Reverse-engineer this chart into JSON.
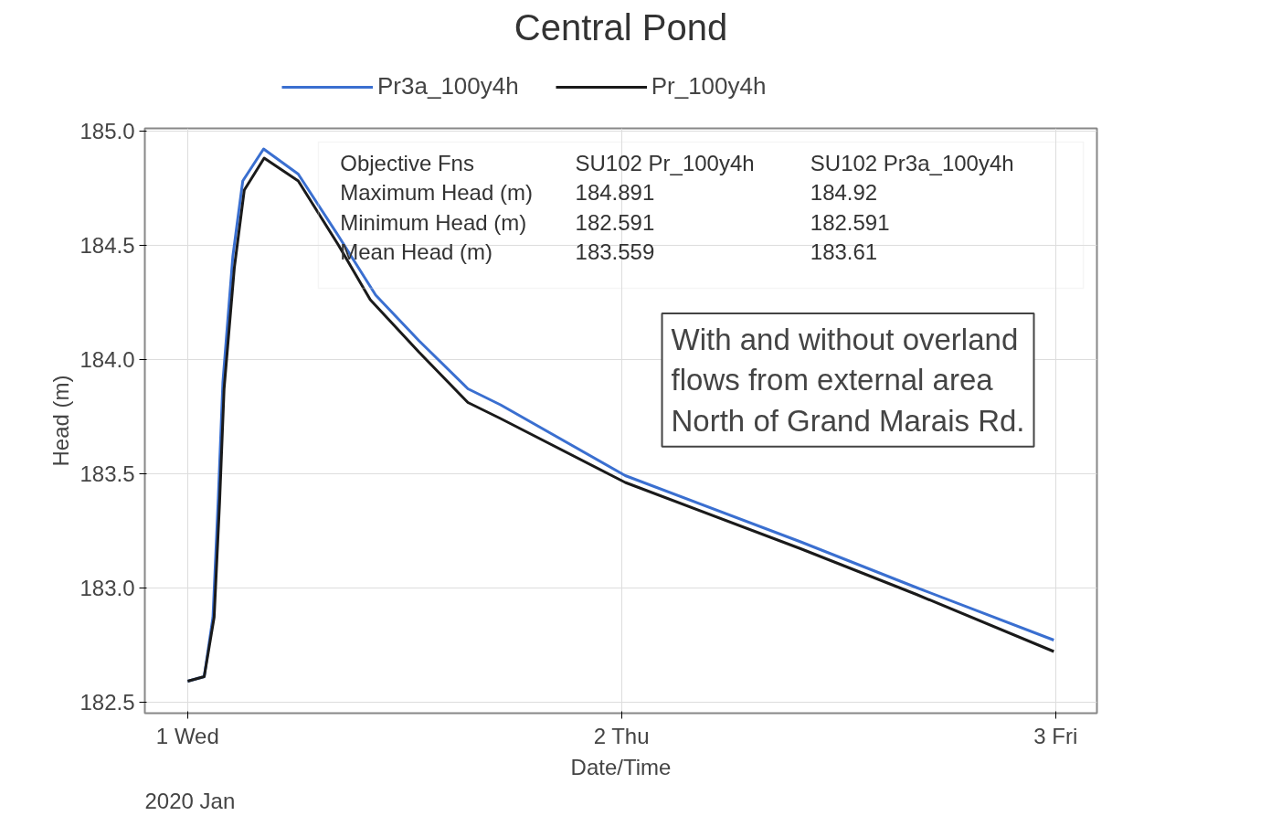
{
  "chart_data": {
    "type": "line",
    "title": "Central Pond",
    "xlabel": "Date/Time",
    "ylabel": "Head (m)",
    "xlim": [
      "2019-12-31T21:38",
      "2020-01-03T02:17"
    ],
    "ylim": [
      182.45,
      185.01
    ],
    "xticks": [
      {
        "value": "2020-01-01",
        "label": "1 Wed"
      },
      {
        "value": "2020-01-02",
        "label": "2 Thu"
      },
      {
        "value": "2020-01-03",
        "label": "3 Fri"
      }
    ],
    "yticks": [
      {
        "value": 182.5,
        "label": "182.5"
      },
      {
        "value": 183.0,
        "label": "183.0"
      },
      {
        "value": 183.5,
        "label": "183.5"
      },
      {
        "value": 184.0,
        "label": "184.0"
      },
      {
        "value": 184.5,
        "label": "184.5"
      },
      {
        "value": 185.0,
        "label": "185.0"
      }
    ],
    "grid": true,
    "legend": "top",
    "series": [
      {
        "name": "Pr3a_100y4h",
        "color": "#3a6fd0",
        "x": [
          "2020-01-01T00:00",
          "2020-01-01T00:55",
          "2020-01-01T01:24",
          "2020-01-01T01:42",
          "2020-01-01T01:57",
          "2020-01-01T02:30",
          "2020-01-01T03:03",
          "2020-01-01T04:12",
          "2020-01-01T06:07",
          "2020-01-01T08:20",
          "2020-01-01T10:24",
          "2020-01-01T12:48",
          "2020-01-01T15:30",
          "2020-01-01T17:18",
          "2020-01-02T00:12",
          "2020-01-02T09:54",
          "2020-01-02T16:18",
          "2020-01-02T23:54"
        ],
        "values": [
          182.59,
          182.61,
          182.87,
          183.4,
          183.9,
          184.45,
          184.78,
          184.92,
          184.81,
          184.54,
          184.28,
          184.08,
          183.87,
          183.8,
          183.49,
          183.2,
          183.0,
          182.77
        ]
      },
      {
        "name": "Pr_100y4h",
        "color": "#1a1a1a",
        "x": [
          "2020-01-01T00:00",
          "2020-01-01T00:55",
          "2020-01-01T01:28",
          "2020-01-01T01:46",
          "2020-01-01T02:01",
          "2020-01-01T02:35",
          "2020-01-01T03:08",
          "2020-01-01T04:14",
          "2020-01-01T06:07",
          "2020-01-01T08:20",
          "2020-01-01T10:06",
          "2020-01-01T12:48",
          "2020-01-01T15:30",
          "2020-01-01T17:18",
          "2020-01-02T00:12",
          "2020-01-02T09:54",
          "2020-01-02T16:18",
          "2020-01-02T23:54"
        ],
        "values": [
          182.59,
          182.61,
          182.87,
          183.37,
          183.87,
          184.4,
          184.74,
          184.88,
          184.78,
          184.5,
          184.26,
          184.03,
          183.81,
          183.74,
          183.46,
          183.17,
          182.97,
          182.72
        ]
      }
    ],
    "annotations": [
      "2020 Jan",
      "Objective Fns",
      "SU102 Pr_100y4h",
      "SU102 Pr3a_100y4h",
      "Maximum Head (m)",
      "184.891",
      "184.92",
      "Minimum Head (m)",
      "182.591",
      "182.591",
      "Mean Head (m)",
      "183.559",
      "183.61",
      "With and without overland\nflows from external area\nNorth of Grand Marais Rd."
    ]
  }
}
